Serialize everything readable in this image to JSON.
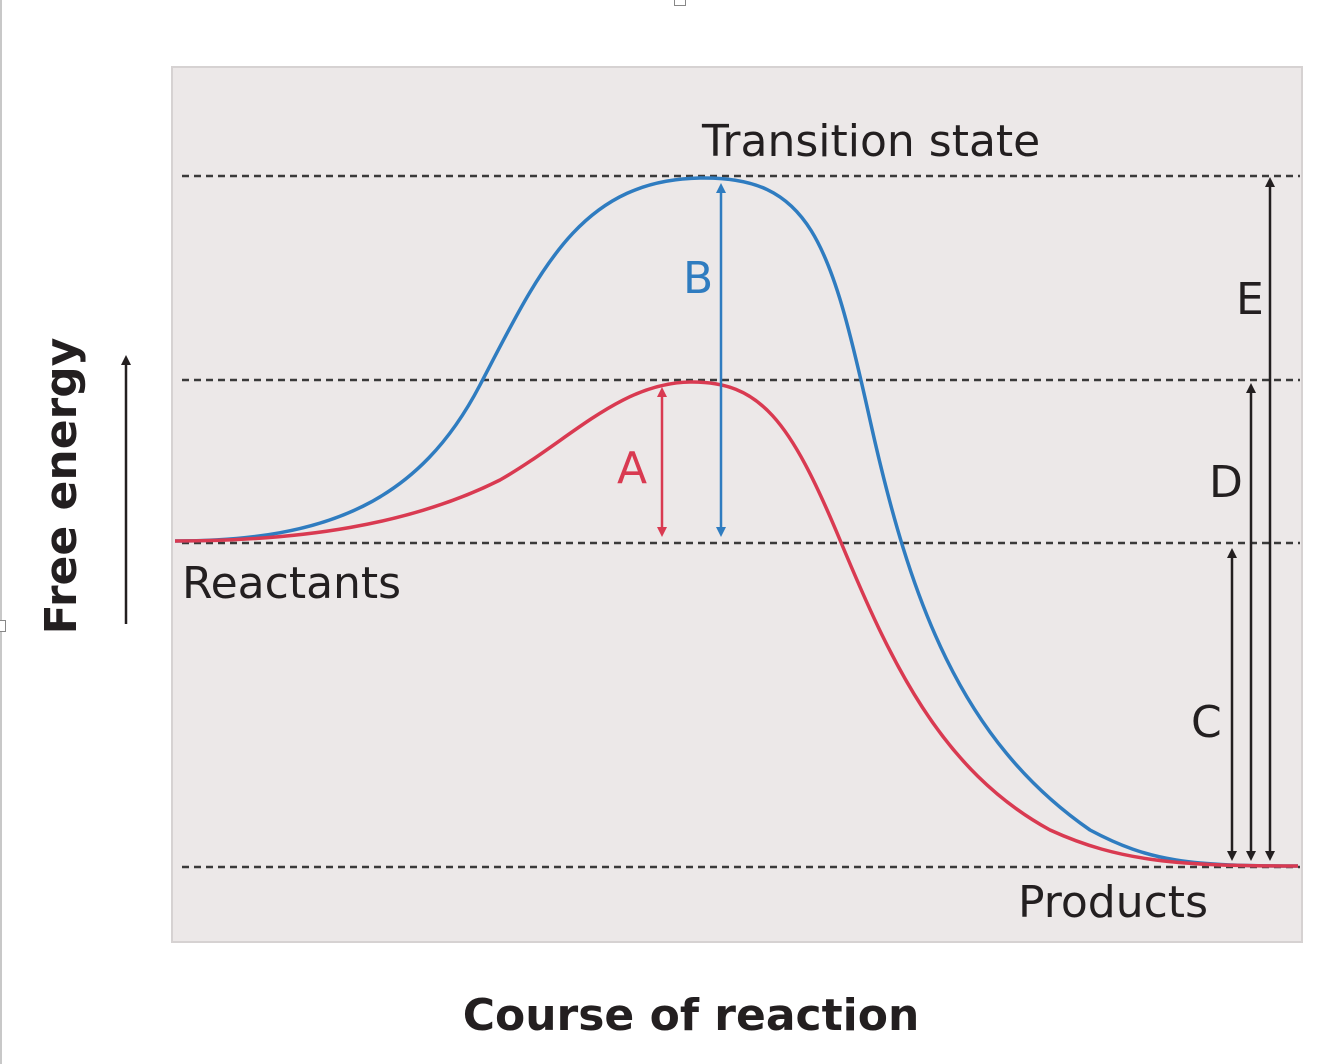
{
  "diagram": {
    "y_axis_label": "Free energy",
    "x_axis_label": "Course of reaction",
    "levels": {
      "transition_state": "Transition state",
      "reactants": "Reactants",
      "products": "Products"
    },
    "arrows": {
      "a": "A",
      "b": "B",
      "c": "C",
      "d": "D",
      "e": "E"
    }
  },
  "colors": {
    "panel_background": "#ece8e8",
    "uncatalyzed_curve": "#2f7cc0",
    "catalyzed_curve": "#d93a51",
    "text": "#231f20",
    "dashed_level": "#3a3a3a"
  }
}
